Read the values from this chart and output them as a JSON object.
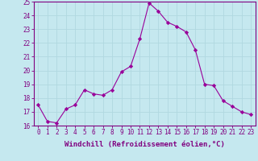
{
  "x": [
    0,
    1,
    2,
    3,
    4,
    5,
    6,
    7,
    8,
    9,
    10,
    11,
    12,
    13,
    14,
    15,
    16,
    17,
    18,
    19,
    20,
    21,
    22,
    23
  ],
  "y": [
    17.5,
    16.3,
    16.2,
    17.2,
    17.5,
    18.6,
    18.3,
    18.2,
    18.6,
    19.9,
    20.3,
    22.3,
    24.9,
    24.3,
    23.5,
    23.2,
    22.8,
    21.5,
    19.0,
    18.9,
    17.8,
    17.4,
    17.0,
    16.8
  ],
  "line_color": "#990099",
  "marker": "D",
  "marker_size": 2.2,
  "bg_color": "#c5e8ef",
  "grid_color": "#b0d8e0",
  "xlabel": "Windchill (Refroidissement éolien,°C)",
  "ylabel": "",
  "ylim": [
    16,
    25
  ],
  "xlim": [
    -0.5,
    23.5
  ],
  "yticks": [
    16,
    17,
    18,
    19,
    20,
    21,
    22,
    23,
    24,
    25
  ],
  "xticks": [
    0,
    1,
    2,
    3,
    4,
    5,
    6,
    7,
    8,
    9,
    10,
    11,
    12,
    13,
    14,
    15,
    16,
    17,
    18,
    19,
    20,
    21,
    22,
    23
  ],
  "tick_label_fontsize": 5.5,
  "xlabel_fontsize": 6.5,
  "tick_color": "#800080",
  "label_color": "#800080",
  "spine_color": "#800080"
}
